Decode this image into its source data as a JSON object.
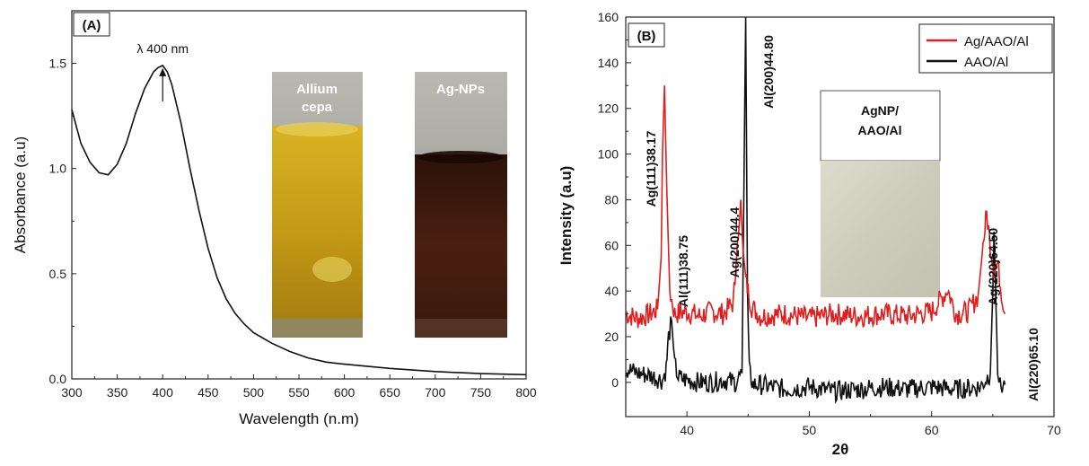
{
  "colors": {
    "series_red": "#e11d1d",
    "series_black": "#111111",
    "axis": "#222222"
  },
  "chart_data": [
    {
      "panel_label": "(A)",
      "type": "line",
      "xlabel": "Wavelength (n.m)",
      "ylabel": "Absorbance (a.u)",
      "xlim": [
        300,
        800
      ],
      "ylim": [
        0,
        1.75
      ],
      "xticks": [
        "300",
        "350",
        "400",
        "450",
        "500",
        "550",
        "600",
        "650",
        "700",
        "750",
        "800"
      ],
      "yticks": [
        "0.0",
        "0.5",
        "1.0",
        "1.5"
      ],
      "grid": false,
      "series": [
        {
          "x": [
            300,
            310,
            320,
            330,
            340,
            350,
            360,
            370,
            380,
            390,
            395,
            400,
            405,
            410,
            420,
            430,
            440,
            450,
            460,
            470,
            480,
            490,
            500,
            520,
            540,
            560,
            580,
            600,
            650,
            700,
            750,
            800
          ],
          "y": [
            1.28,
            1.12,
            1.03,
            0.98,
            0.97,
            1.02,
            1.12,
            1.26,
            1.38,
            1.46,
            1.48,
            1.49,
            1.46,
            1.4,
            1.22,
            1.0,
            0.8,
            0.62,
            0.48,
            0.38,
            0.31,
            0.26,
            0.22,
            0.17,
            0.13,
            0.1,
            0.08,
            0.07,
            0.05,
            0.035,
            0.025,
            0.02
          ]
        }
      ],
      "annotations": [
        {
          "text": "λ 400 nm",
          "x": 400,
          "y": 1.49
        }
      ],
      "inset_photos": [
        {
          "label_lines": [
            "Allium",
            "cepa"
          ],
          "liquid_color": "#c8a21a"
        },
        {
          "label_lines": [
            "Ag-NPs"
          ],
          "liquid_color": "#3a1a10"
        }
      ]
    },
    {
      "panel_label": "(B)",
      "type": "line",
      "xlabel": "2θ",
      "ylabel": "Intensity (a.u)",
      "xlim": [
        35,
        70
      ],
      "ylim": [
        -15,
        160
      ],
      "xticks": [
        "40",
        "50",
        "60",
        "70"
      ],
      "yticks": [
        "0",
        "20",
        "40",
        "60",
        "80",
        "100",
        "120",
        "140",
        "160"
      ],
      "grid": false,
      "legend_position": "top-right",
      "series": [
        {
          "name": "Ag/AAO/Al",
          "color": "#e11d1d",
          "x": [
            35,
            36,
            37,
            37.6,
            37.9,
            38.0,
            38.17,
            38.35,
            38.6,
            39,
            40,
            41,
            42,
            43,
            43.8,
            44.0,
            44.2,
            44.4,
            44.6,
            44.8,
            45.0,
            45.3,
            46,
            48,
            50,
            52,
            54,
            56,
            58,
            60,
            61,
            61.3,
            61.6,
            62,
            63,
            63.8,
            64.2,
            64.5,
            64.8,
            65.1,
            65.4,
            65.7,
            66
          ],
          "y": [
            30,
            28,
            30,
            32,
            55,
            100,
            130,
            85,
            40,
            30,
            31,
            29,
            31,
            30,
            35,
            50,
            68,
            80,
            55,
            45,
            40,
            33,
            29,
            30,
            28,
            30,
            29,
            30,
            29,
            31,
            38,
            41,
            36,
            30,
            31,
            38,
            60,
            74,
            60,
            50,
            52,
            40,
            30
          ]
        },
        {
          "name": "AAO/Al",
          "color": "#111111",
          "x": [
            35,
            36,
            37,
            38,
            38.3,
            38.5,
            38.75,
            39.0,
            39.3,
            40,
            41,
            42,
            43,
            44,
            44.5,
            44.65,
            44.8,
            44.95,
            45.1,
            45.4,
            46,
            48,
            50,
            52,
            54,
            56,
            58,
            60,
            62,
            64,
            64.8,
            65.0,
            65.1,
            65.25,
            65.4,
            65.6,
            66
          ],
          "y": [
            6,
            4,
            3,
            1,
            6,
            20,
            27,
            8,
            2,
            1,
            0,
            0,
            1,
            0,
            4,
            80,
            160,
            40,
            5,
            -1,
            -1,
            -3,
            -2,
            -4,
            -3,
            -2,
            -3,
            -2,
            -3,
            -2,
            4,
            40,
            66,
            35,
            6,
            -2,
            -1
          ]
        }
      ],
      "annotations": [
        {
          "text": "Ag(111)38.17",
          "x": 38.17,
          "y": 130
        },
        {
          "text": "Al(111)38.75",
          "x": 38.75,
          "y": 27
        },
        {
          "text": "Ag(200)44.4",
          "x": 44.4,
          "y": 80
        },
        {
          "text": "Al(200)44.80",
          "x": 44.8,
          "y": 160
        },
        {
          "text": "Ag(220)64.50",
          "x": 64.5,
          "y": 74
        },
        {
          "text": "Al(220)65.10",
          "x": 65.1,
          "y": 66
        }
      ],
      "inset_photo": {
        "label_lines": [
          "AgNP/",
          "AAO/Al"
        ],
        "surface_color": "#cfcfbf"
      }
    }
  ]
}
